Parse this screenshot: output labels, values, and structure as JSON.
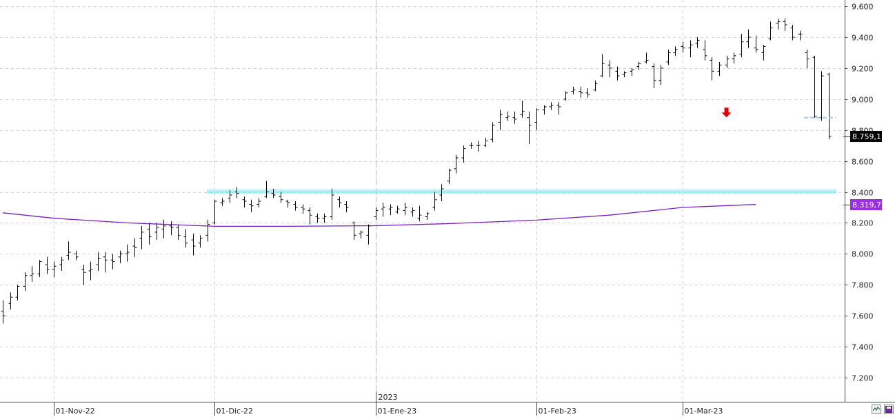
{
  "chart_data": {
    "type": "ohlc",
    "y_axis": {
      "ticks": [
        "9.600",
        "9.400",
        "9.200",
        "9.000",
        "8.800",
        "8.600",
        "8.400",
        "8.200",
        "8.000",
        "7.800",
        "7.600",
        "7.400",
        "7.200"
      ],
      "tick_values": [
        9600,
        9400,
        9200,
        9000,
        8800,
        8600,
        8400,
        8200,
        8000,
        7800,
        7600,
        7400,
        7200
      ],
      "ylim": [
        7060,
        9640
      ],
      "position": "right"
    },
    "x_axis": {
      "date_labels": [
        "01-Nov-22",
        "01-Dic-22",
        "01-Ene-23",
        "01-Feb-23",
        "01-Mar-23"
      ],
      "label_dates": [
        "2022-11-01",
        "2022-12-01",
        "2023-01-02",
        "2023-02-01",
        "2023-03-01"
      ],
      "year_label": "2023",
      "year_date": "2023-01-02"
    },
    "price_label": "8.759,1",
    "ma_label": "8.319,7",
    "grid": true,
    "colors": {
      "bars": "#000000",
      "ma": "#7a1fc0",
      "support": "#8fe8ee",
      "stop": "#a9c8e8",
      "arrow": "#e10000",
      "price_label_bg": "#000000",
      "ma_label_bg": "#9b30e0"
    },
    "support_level": 8400,
    "stop_level": 8880,
    "signal_arrow": {
      "date": "2023-03-09",
      "value": 8900
    },
    "ma_series": [
      [
        "2022-10-21",
        8265
      ],
      [
        "2022-11-01",
        8230
      ],
      [
        "2022-11-15",
        8200
      ],
      [
        "2022-12-01",
        8178
      ],
      [
        "2022-12-15",
        8178
      ],
      [
        "2023-01-02",
        8182
      ],
      [
        "2023-01-16",
        8195
      ],
      [
        "2023-02-01",
        8218
      ],
      [
        "2023-02-15",
        8250
      ],
      [
        "2023-03-01",
        8300
      ],
      [
        "2023-03-15",
        8319
      ]
    ],
    "ohlc": [
      [
        "2022-10-21",
        7630,
        7700,
        7550,
        7600
      ],
      [
        "2022-10-24",
        7680,
        7750,
        7640,
        7720
      ],
      [
        "2022-10-25",
        7720,
        7800,
        7700,
        7790
      ],
      [
        "2022-10-26",
        7790,
        7880,
        7760,
        7860
      ],
      [
        "2022-10-27",
        7860,
        7920,
        7820,
        7870
      ],
      [
        "2022-10-28",
        7870,
        7960,
        7850,
        7950
      ],
      [
        "2022-10-31",
        7930,
        7980,
        7870,
        7900
      ],
      [
        "2022-11-01",
        7900,
        7950,
        7850,
        7920
      ],
      [
        "2022-11-02",
        7930,
        7980,
        7890,
        7960
      ],
      [
        "2022-11-03",
        7990,
        8080,
        7960,
        8010
      ],
      [
        "2022-11-04",
        8000,
        8020,
        7960,
        7980
      ],
      [
        "2022-11-07",
        7900,
        7930,
        7800,
        7880
      ],
      [
        "2022-11-08",
        7890,
        7950,
        7830,
        7900
      ],
      [
        "2022-11-09",
        7930,
        8010,
        7890,
        7970
      ],
      [
        "2022-11-10",
        7980,
        8010,
        7880,
        7960
      ],
      [
        "2022-11-11",
        7960,
        8000,
        7900,
        7950
      ],
      [
        "2022-11-14",
        7980,
        8020,
        7940,
        8000
      ],
      [
        "2022-11-15",
        8000,
        8060,
        7950,
        8010
      ],
      [
        "2022-11-16",
        8050,
        8100,
        7980,
        8040
      ],
      [
        "2022-11-17",
        8100,
        8180,
        8030,
        8140
      ],
      [
        "2022-11-18",
        8160,
        8200,
        8060,
        8110
      ],
      [
        "2022-11-21",
        8140,
        8200,
        8090,
        8170
      ],
      [
        "2022-11-22",
        8160,
        8220,
        8100,
        8180
      ],
      [
        "2022-11-23",
        8180,
        8210,
        8120,
        8170
      ],
      [
        "2022-11-24",
        8170,
        8190,
        8090,
        8120
      ],
      [
        "2022-11-25",
        8110,
        8160,
        8040,
        8070
      ],
      [
        "2022-11-28",
        8090,
        8130,
        7990,
        8050
      ],
      [
        "2022-11-29",
        8070,
        8120,
        8040,
        8100
      ],
      [
        "2022-11-30",
        8120,
        8220,
        8080,
        8190
      ],
      [
        "2022-12-01",
        8200,
        8350,
        8190,
        8340
      ],
      [
        "2022-12-02",
        8330,
        8360,
        8310,
        8340
      ],
      [
        "2022-12-05",
        8360,
        8410,
        8330,
        8380
      ],
      [
        "2022-12-06",
        8400,
        8430,
        8360,
        8390
      ],
      [
        "2022-12-07",
        8350,
        8370,
        8300,
        8340
      ],
      [
        "2022-12-08",
        8320,
        8350,
        8270,
        8310
      ],
      [
        "2022-12-09",
        8320,
        8360,
        8300,
        8340
      ],
      [
        "2022-12-12",
        8370,
        8470,
        8360,
        8400
      ],
      [
        "2022-12-13",
        8390,
        8420,
        8360,
        8380
      ],
      [
        "2022-12-14",
        8370,
        8400,
        8330,
        8350
      ],
      [
        "2022-12-15",
        8340,
        8350,
        8300,
        8330
      ],
      [
        "2022-12-16",
        8320,
        8340,
        8280,
        8300
      ],
      [
        "2022-12-19",
        8300,
        8320,
        8260,
        8290
      ],
      [
        "2022-12-20",
        8280,
        8300,
        8190,
        8250
      ],
      [
        "2022-12-21",
        8240,
        8260,
        8200,
        8230
      ],
      [
        "2022-12-22",
        8230,
        8260,
        8200,
        8240
      ],
      [
        "2022-12-23",
        8240,
        8420,
        8220,
        8380
      ],
      [
        "2022-12-26",
        8350,
        8370,
        8300,
        8330
      ],
      [
        "2022-12-27",
        8320,
        8340,
        8270,
        8300
      ],
      [
        "2022-12-28",
        8200,
        8210,
        8090,
        8120
      ],
      [
        "2022-12-29",
        8130,
        8150,
        8100,
        8140
      ],
      [
        "2022-12-30",
        8120,
        8190,
        8060,
        8180
      ],
      [
        "2023-01-02",
        8240,
        8300,
        8220,
        8280
      ],
      [
        "2023-01-03",
        8290,
        8330,
        8240,
        8300
      ],
      [
        "2023-01-04",
        8290,
        8320,
        8250,
        8300
      ],
      [
        "2023-01-05",
        8270,
        8310,
        8260,
        8290
      ],
      [
        "2023-01-06",
        8280,
        8330,
        8250,
        8300
      ],
      [
        "2023-01-09",
        8270,
        8300,
        8240,
        8280
      ],
      [
        "2023-01-10",
        8230,
        8310,
        8210,
        8250
      ],
      [
        "2023-01-11",
        8240,
        8270,
        8220,
        8260
      ],
      [
        "2023-01-12",
        8300,
        8400,
        8280,
        8350
      ],
      [
        "2023-01-13",
        8380,
        8450,
        8340,
        8420
      ],
      [
        "2023-01-16",
        8470,
        8550,
        8450,
        8540
      ],
      [
        "2023-01-17",
        8550,
        8640,
        8520,
        8620
      ],
      [
        "2023-01-18",
        8620,
        8700,
        8590,
        8680
      ],
      [
        "2023-01-19",
        8700,
        8720,
        8680,
        8700
      ],
      [
        "2023-01-20",
        8700,
        8730,
        8660,
        8700
      ],
      [
        "2023-01-23",
        8700,
        8750,
        8690,
        8730
      ],
      [
        "2023-01-24",
        8740,
        8850,
        8720,
        8830
      ],
      [
        "2023-01-25",
        8850,
        8930,
        8800,
        8900
      ],
      [
        "2023-01-26",
        8880,
        8920,
        8860,
        8890
      ],
      [
        "2023-01-27",
        8880,
        8920,
        8840,
        8870
      ],
      [
        "2023-01-30",
        8900,
        8990,
        8880,
        8920
      ],
      [
        "2023-01-31",
        8880,
        8920,
        8710,
        8830
      ],
      [
        "2023-02-01",
        8850,
        8940,
        8800,
        8930
      ],
      [
        "2023-02-02",
        8930,
        8960,
        8900,
        8950
      ],
      [
        "2023-02-03",
        8950,
        8980,
        8930,
        8960
      ],
      [
        "2023-02-06",
        8960,
        8980,
        8900,
        8950
      ],
      [
        "2023-02-07",
        9000,
        9050,
        8990,
        9040
      ],
      [
        "2023-02-08",
        9050,
        9080,
        9030,
        9060
      ],
      [
        "2023-02-09",
        9050,
        9080,
        9010,
        9040
      ],
      [
        "2023-02-10",
        9040,
        9070,
        9010,
        9030
      ],
      [
        "2023-02-13",
        9060,
        9120,
        9050,
        9100
      ],
      [
        "2023-02-14",
        9150,
        9290,
        9140,
        9230
      ],
      [
        "2023-02-15",
        9220,
        9250,
        9140,
        9200
      ],
      [
        "2023-02-16",
        9180,
        9210,
        9120,
        9150
      ],
      [
        "2023-02-17",
        9160,
        9180,
        9140,
        9170
      ],
      [
        "2023-02-20",
        9180,
        9200,
        9150,
        9190
      ],
      [
        "2023-02-21",
        9210,
        9240,
        9190,
        9230
      ],
      [
        "2023-02-22",
        9240,
        9300,
        9230,
        9250
      ],
      [
        "2023-02-23",
        9210,
        9230,
        9070,
        9120
      ],
      [
        "2023-02-24",
        9120,
        9220,
        9090,
        9200
      ],
      [
        "2023-02-27",
        9240,
        9320,
        9220,
        9300
      ],
      [
        "2023-02-28",
        9300,
        9340,
        9280,
        9320
      ],
      [
        "2023-03-01",
        9340,
        9370,
        9300,
        9330
      ],
      [
        "2023-03-02",
        9330,
        9380,
        9270,
        9350
      ],
      [
        "2023-03-03",
        9360,
        9400,
        9330,
        9380
      ],
      [
        "2023-03-06",
        9320,
        9380,
        9250,
        9280
      ],
      [
        "2023-03-07",
        9250,
        9270,
        9120,
        9180
      ],
      [
        "2023-03-08",
        9180,
        9240,
        9150,
        9220
      ],
      [
        "2023-03-09",
        9220,
        9280,
        9200,
        9260
      ],
      [
        "2023-03-10",
        9260,
        9300,
        9230,
        9280
      ],
      [
        "2023-03-13",
        9290,
        9420,
        9270,
        9370
      ],
      [
        "2023-03-14",
        9370,
        9450,
        9330,
        9400
      ],
      [
        "2023-03-15",
        9330,
        9410,
        9300,
        9320
      ],
      [
        "2023-03-16",
        9300,
        9350,
        9250,
        9340
      ],
      [
        "2023-03-17",
        9390,
        9500,
        9380,
        9460
      ],
      [
        "2023-03-20",
        9490,
        9520,
        9450,
        9500
      ],
      [
        "2023-03-21",
        9500,
        9520,
        9440,
        9480
      ],
      [
        "2023-03-22",
        9460,
        9480,
        9380,
        9400
      ],
      [
        "2023-03-23",
        9420,
        9440,
        9380,
        9420
      ],
      [
        "2023-03-24",
        9300,
        9320,
        9200,
        9260
      ],
      [
        "2023-03-27",
        9270,
        9280,
        8880,
        8890
      ],
      [
        "2023-03-28",
        8880,
        9180,
        8860,
        9150
      ],
      [
        "2023-03-29",
        9160,
        9170,
        8740,
        8760
      ]
    ]
  }
}
